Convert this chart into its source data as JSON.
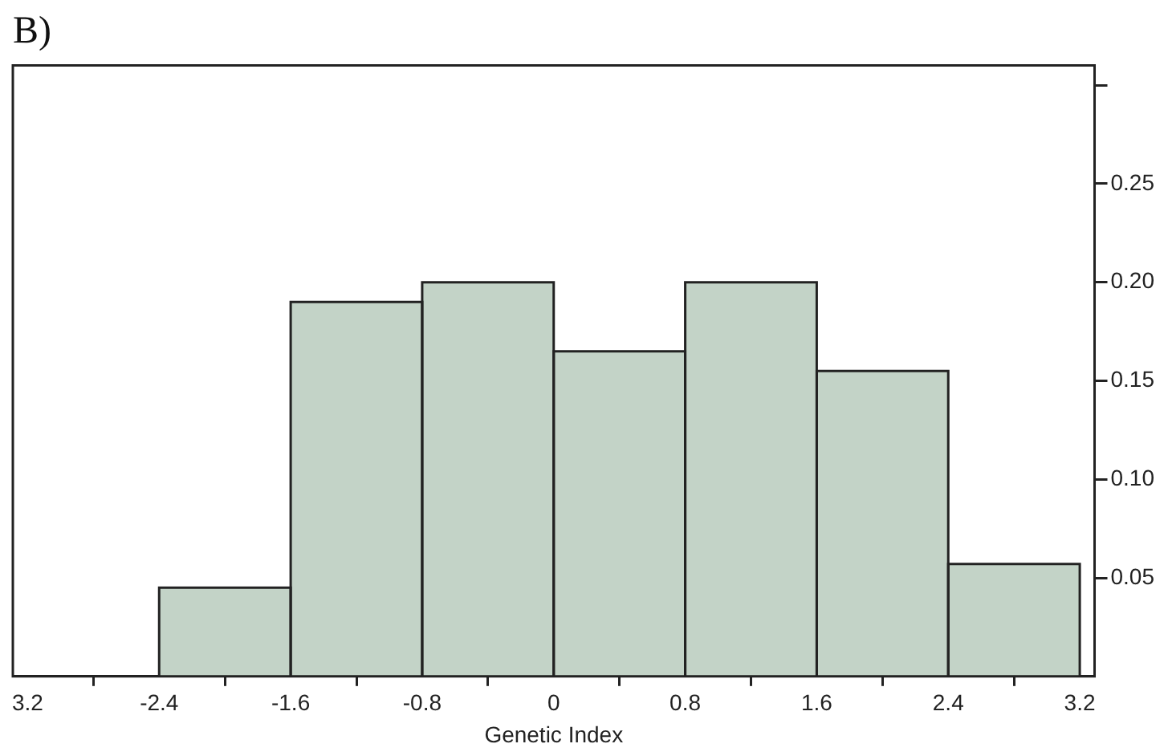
{
  "chart_data": {
    "type": "histogram",
    "title": "B)",
    "xlabel": "Genetic Index",
    "bins": [
      -3.2,
      -2.4,
      -1.6,
      -0.8,
      0,
      0.8,
      1.6,
      2.4,
      3.2
    ],
    "values": [
      0,
      0.045,
      0.19,
      0.2,
      0.165,
      0.2,
      0.155,
      0.057
    ],
    "color": "#c3d3c7",
    "xlim": [
      -3.29,
      3.29
    ],
    "xticks": [
      {
        "value": -3.2,
        "label": "3.2"
      },
      -2.4,
      -1.6,
      -0.8,
      0,
      0.8,
      1.6,
      2.4,
      3.2
    ],
    "ylim": [
      0,
      0.31
    ],
    "yticks": [
      {
        "value": 0.05,
        "label": "0.05"
      },
      {
        "value": 0.1,
        "label": "0.10"
      },
      {
        "value": 0.15,
        "label": "0.15"
      },
      {
        "value": 0.2,
        "label": "0.20"
      },
      {
        "value": 0.25,
        "label": "0.25"
      },
      {
        "value": 0.3,
        "label": null
      }
    ],
    "grid": false,
    "legend": false
  }
}
